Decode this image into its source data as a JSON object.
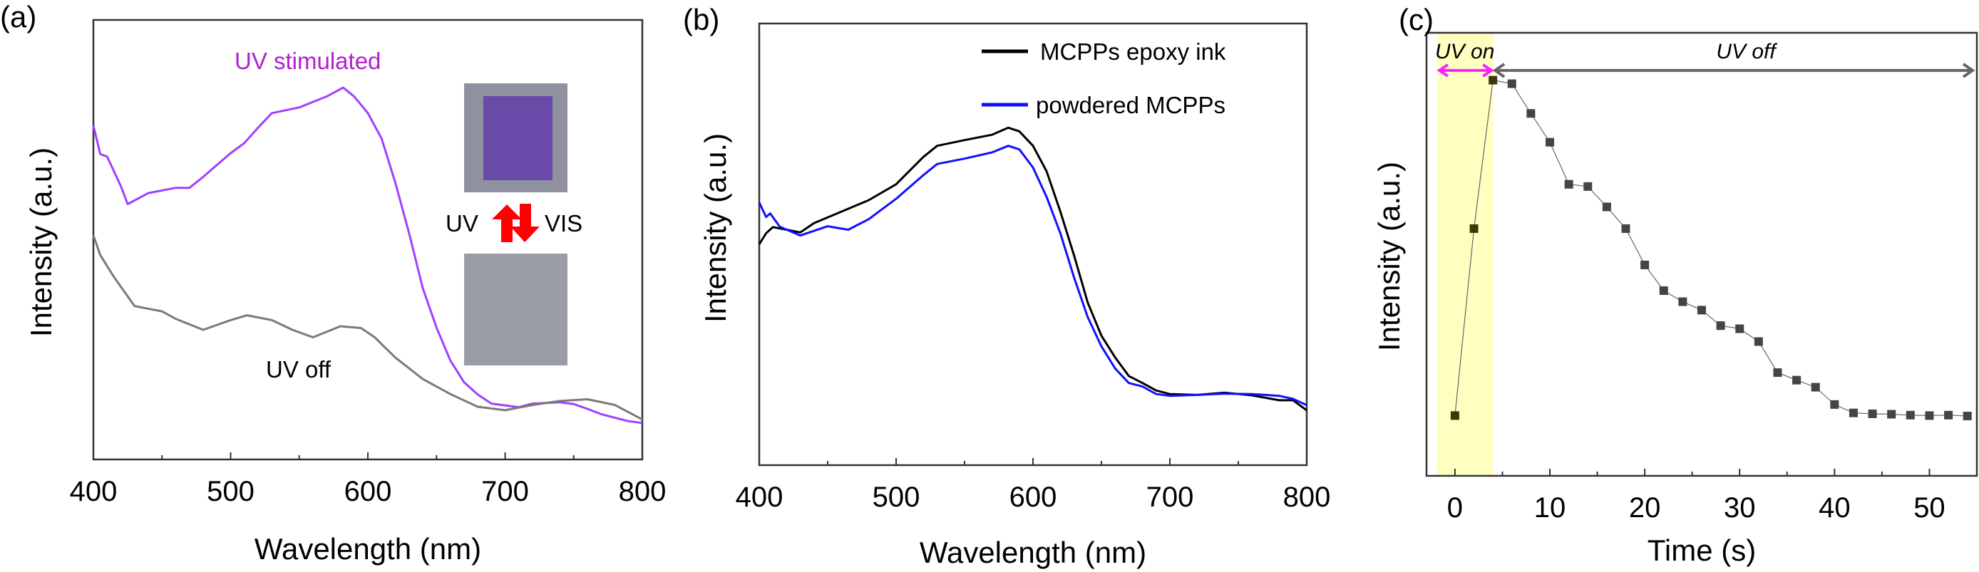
{
  "colors": {
    "uv_stimulated": "#a040ff",
    "uv_off": "#7a7a7a",
    "epoxy": "#000000",
    "powdered": "#1010ff",
    "uv_on_band": "#ffffc0",
    "uv_on_arrow": "#ff20ff",
    "uv_off_arrow": "#666666",
    "marker": "#444444",
    "inset_purple": "#6a4aa8",
    "inset_gray": "#9a9ca8",
    "red_arrow": "#ff0000"
  },
  "chart_data": [
    {
      "panel": "(a)",
      "type": "line",
      "xlabel": "Wavelength (nm)",
      "ylabel": "Intensity (a.u.)",
      "xlim": [
        400,
        800
      ],
      "ylim": [
        0,
        1
      ],
      "xticks": [
        400,
        500,
        600,
        700,
        800
      ],
      "annotations": {
        "uv_stimulated": "UV stimulated",
        "uv_off": "UV off",
        "inset_uv": "UV",
        "inset_vis": "VIS"
      },
      "series": [
        {
          "name": "UV stimulated",
          "x": [
            400,
            405,
            410,
            420,
            425,
            440,
            460,
            470,
            480,
            500,
            510,
            520,
            530,
            550,
            570,
            582,
            590,
            600,
            610,
            620,
            630,
            640,
            650,
            660,
            670,
            680,
            690,
            700,
            710,
            720,
            740,
            750,
            760,
            770,
            780,
            790,
            800
          ],
          "y": [
            0.76,
            0.695,
            0.689,
            0.622,
            0.581,
            0.606,
            0.618,
            0.618,
            0.643,
            0.697,
            0.72,
            0.755,
            0.788,
            0.801,
            0.826,
            0.846,
            0.826,
            0.788,
            0.73,
            0.63,
            0.515,
            0.39,
            0.3,
            0.226,
            0.176,
            0.148,
            0.127,
            0.123,
            0.119,
            0.127,
            0.13,
            0.126,
            0.115,
            0.103,
            0.095,
            0.087,
            0.083
          ]
        },
        {
          "name": "UV off",
          "x": [
            400,
            405,
            415,
            430,
            450,
            460,
            480,
            500,
            512,
            530,
            545,
            560,
            580,
            595,
            605,
            620,
            640,
            660,
            680,
            700,
            720,
            740,
            760,
            780,
            800
          ],
          "y": [
            0.51,
            0.465,
            0.415,
            0.349,
            0.337,
            0.32,
            0.295,
            0.317,
            0.328,
            0.317,
            0.295,
            0.278,
            0.303,
            0.299,
            0.278,
            0.232,
            0.183,
            0.149,
            0.12,
            0.112,
            0.124,
            0.133,
            0.137,
            0.124,
            0.091
          ]
        }
      ]
    },
    {
      "panel": "(b)",
      "type": "line",
      "xlabel": "Wavelength (nm)",
      "ylabel": "Intensity (a.u.)",
      "xlim": [
        400,
        800
      ],
      "ylim": [
        0,
        1
      ],
      "xticks": [
        400,
        500,
        600,
        700,
        800
      ],
      "legend_position": "top-right",
      "series": [
        {
          "name": "MCPPs epoxy ink",
          "x": [
            400,
            405,
            410,
            420,
            430,
            440,
            460,
            480,
            500,
            520,
            530,
            550,
            570,
            582,
            590,
            600,
            610,
            620,
            630,
            640,
            650,
            660,
            670,
            680,
            690,
            700,
            720,
            740,
            760,
            780,
            790,
            800
          ],
          "y": [
            0.5,
            0.525,
            0.539,
            0.533,
            0.527,
            0.548,
            0.574,
            0.6,
            0.636,
            0.698,
            0.723,
            0.736,
            0.748,
            0.764,
            0.756,
            0.723,
            0.665,
            0.574,
            0.475,
            0.368,
            0.293,
            0.244,
            0.202,
            0.186,
            0.169,
            0.161,
            0.159,
            0.164,
            0.158,
            0.147,
            0.147,
            0.124
          ]
        },
        {
          "name": "powdered MCPPs",
          "x": [
            400,
            405,
            408,
            415,
            430,
            450,
            465,
            480,
            500,
            520,
            530,
            550,
            570,
            582,
            590,
            600,
            610,
            620,
            630,
            640,
            650,
            660,
            670,
            680,
            690,
            700,
            720,
            740,
            760,
            780,
            790,
            800
          ],
          "y": [
            0.595,
            0.562,
            0.57,
            0.54,
            0.52,
            0.541,
            0.533,
            0.557,
            0.603,
            0.657,
            0.682,
            0.694,
            0.708,
            0.723,
            0.715,
            0.674,
            0.607,
            0.525,
            0.425,
            0.335,
            0.269,
            0.219,
            0.186,
            0.178,
            0.161,
            0.157,
            0.159,
            0.162,
            0.161,
            0.157,
            0.15,
            0.136
          ]
        }
      ]
    },
    {
      "panel": "(c)",
      "type": "scatter",
      "xlabel": "Time (s)",
      "ylabel": "Intensity (a.u.)",
      "xlim": [
        -3,
        55
      ],
      "ylim": [
        0,
        1
      ],
      "xticks": [
        0,
        10,
        20,
        30,
        40,
        50
      ],
      "uv_on_range": [
        -1.9,
        4
      ],
      "annotations": {
        "uv_on": "UV on",
        "uv_off": "UV off"
      },
      "series": [
        {
          "name": "Intensity",
          "x": [
            0,
            2,
            4,
            6,
            8,
            10,
            12,
            14,
            16,
            18,
            20,
            22,
            24,
            26,
            28,
            30,
            32,
            34,
            36,
            38,
            40,
            42,
            44,
            46,
            48,
            50,
            52,
            54
          ],
          "y": [
            0.136,
            0.558,
            0.893,
            0.885,
            0.818,
            0.753,
            0.658,
            0.653,
            0.607,
            0.558,
            0.476,
            0.418,
            0.393,
            0.374,
            0.339,
            0.332,
            0.303,
            0.233,
            0.216,
            0.2,
            0.161,
            0.142,
            0.14,
            0.139,
            0.137,
            0.136,
            0.137,
            0.135
          ]
        }
      ]
    }
  ]
}
